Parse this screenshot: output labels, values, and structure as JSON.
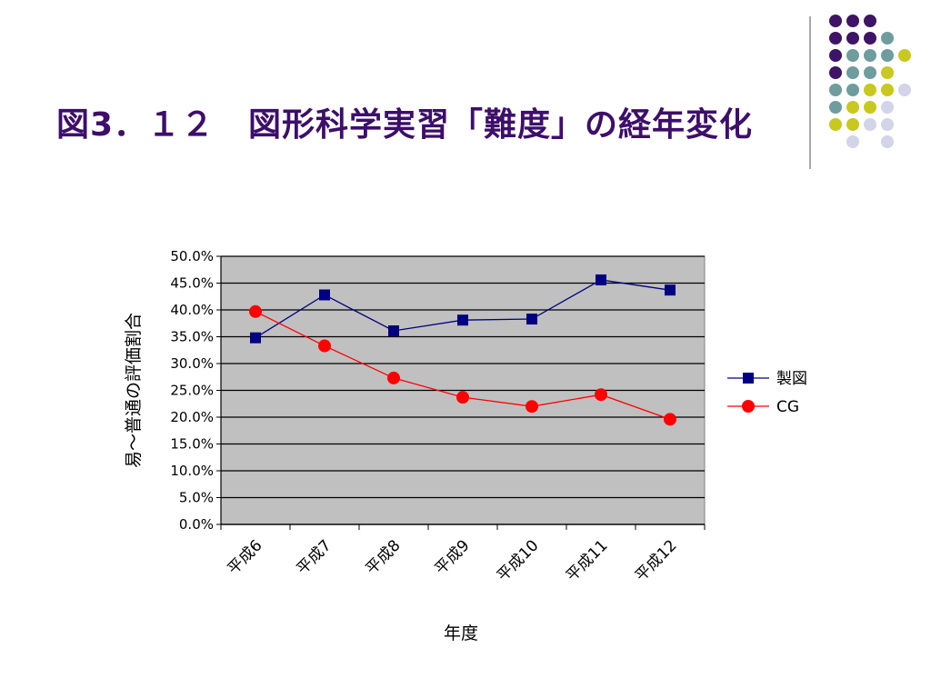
{
  "slide": {
    "title": "図3．１２　図形科学実習「難度」の経年変化"
  },
  "colors": {
    "title": "#3d0e6b",
    "dot_purple": "#3d1466",
    "dot_teal": "#6f9c9c",
    "dot_yellow": "#c8c81e",
    "dot_lavender": "#d3d3ea",
    "plot_bg": "#c0c0c0",
    "series_seizu": "#000080",
    "series_cg": "#ff0000"
  },
  "chart_data": {
    "type": "line",
    "title": "",
    "xlabel": "年度",
    "ylabel": "易～普通の評価割合",
    "categories": [
      "平成6",
      "平成7",
      "平成8",
      "平成9",
      "平成10",
      "平成11",
      "平成12"
    ],
    "ylim": [
      0,
      50
    ],
    "yticks": [
      "0.0%",
      "5.0%",
      "10.0%",
      "15.0%",
      "20.0%",
      "25.0%",
      "30.0%",
      "35.0%",
      "40.0%",
      "45.0%",
      "50.0%"
    ],
    "grid": true,
    "legend": "right",
    "series": [
      {
        "name": "製図",
        "values": [
          34.8,
          42.8,
          36.1,
          38.1,
          38.3,
          45.6,
          43.7
        ],
        "color": "#000080",
        "marker": "square"
      },
      {
        "name": "CG",
        "values": [
          39.7,
          33.3,
          27.3,
          23.7,
          22.0,
          24.2,
          19.6
        ],
        "color": "#ff0000",
        "marker": "circle"
      }
    ]
  }
}
